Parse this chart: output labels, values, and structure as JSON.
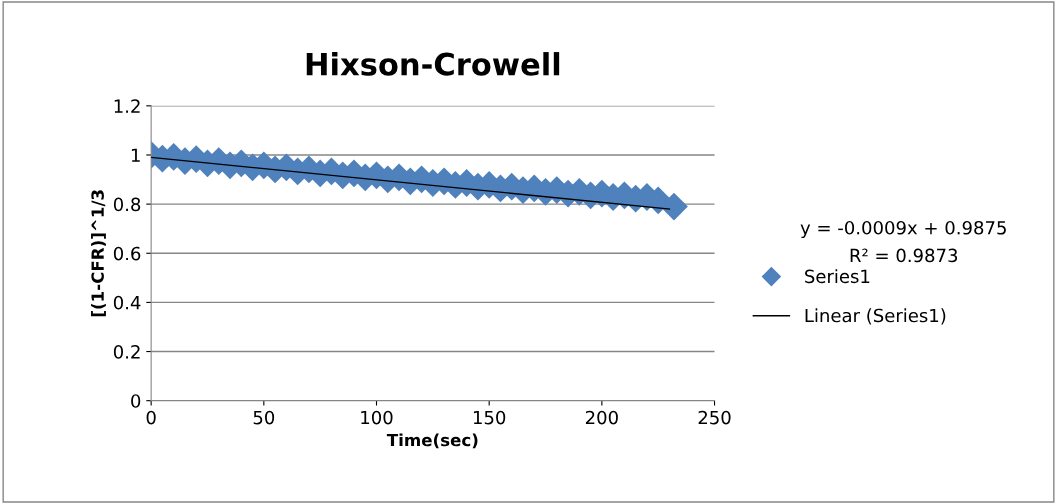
{
  "chart_data": {
    "type": "scatter",
    "title": "Hixson-Crowell",
    "xlabel": "Time(sec)",
    "ylabel": "[(1-CFR)]^1/3",
    "xlim": [
      0,
      250
    ],
    "xticks": [
      0,
      50,
      100,
      150,
      200,
      250
    ],
    "ylim": [
      0,
      1.2
    ],
    "yticks": [
      0,
      0.2,
      0.4,
      0.6,
      0.8,
      1,
      1.2
    ],
    "grid": "y",
    "legend": "right",
    "annotations": [
      "y = -0.0009x + 0.9875",
      "R² = 0.9873"
    ],
    "series": [
      {
        "name": "Series1",
        "marker": "diamond",
        "color": "#4f81bd",
        "x": [
          0,
          5,
          10,
          15,
          20,
          25,
          30,
          35,
          40,
          45,
          50,
          55,
          60,
          65,
          70,
          75,
          80,
          85,
          90,
          95,
          100,
          105,
          110,
          115,
          120,
          125,
          130,
          135,
          140,
          145,
          150,
          155,
          160,
          165,
          170,
          175,
          180,
          185,
          190,
          195,
          200,
          205,
          210,
          215,
          220,
          225,
          232
        ],
        "values": [
          1.0,
          0.985,
          0.992,
          0.975,
          0.983,
          0.966,
          0.975,
          0.958,
          0.966,
          0.95,
          0.958,
          0.941,
          0.95,
          0.933,
          0.941,
          0.925,
          0.933,
          0.917,
          0.925,
          0.909,
          0.917,
          0.901,
          0.909,
          0.893,
          0.901,
          0.886,
          0.893,
          0.878,
          0.886,
          0.871,
          0.878,
          0.864,
          0.871,
          0.857,
          0.864,
          0.85,
          0.857,
          0.843,
          0.85,
          0.836,
          0.843,
          0.829,
          0.836,
          0.822,
          0.829,
          0.815,
          0.79
        ]
      },
      {
        "name": "Linear (Series1)",
        "type": "line",
        "marker": "none",
        "line_style": "solid",
        "color": "#000000",
        "x": [
          0,
          230
        ],
        "values": [
          0.99,
          0.78
        ]
      }
    ]
  }
}
